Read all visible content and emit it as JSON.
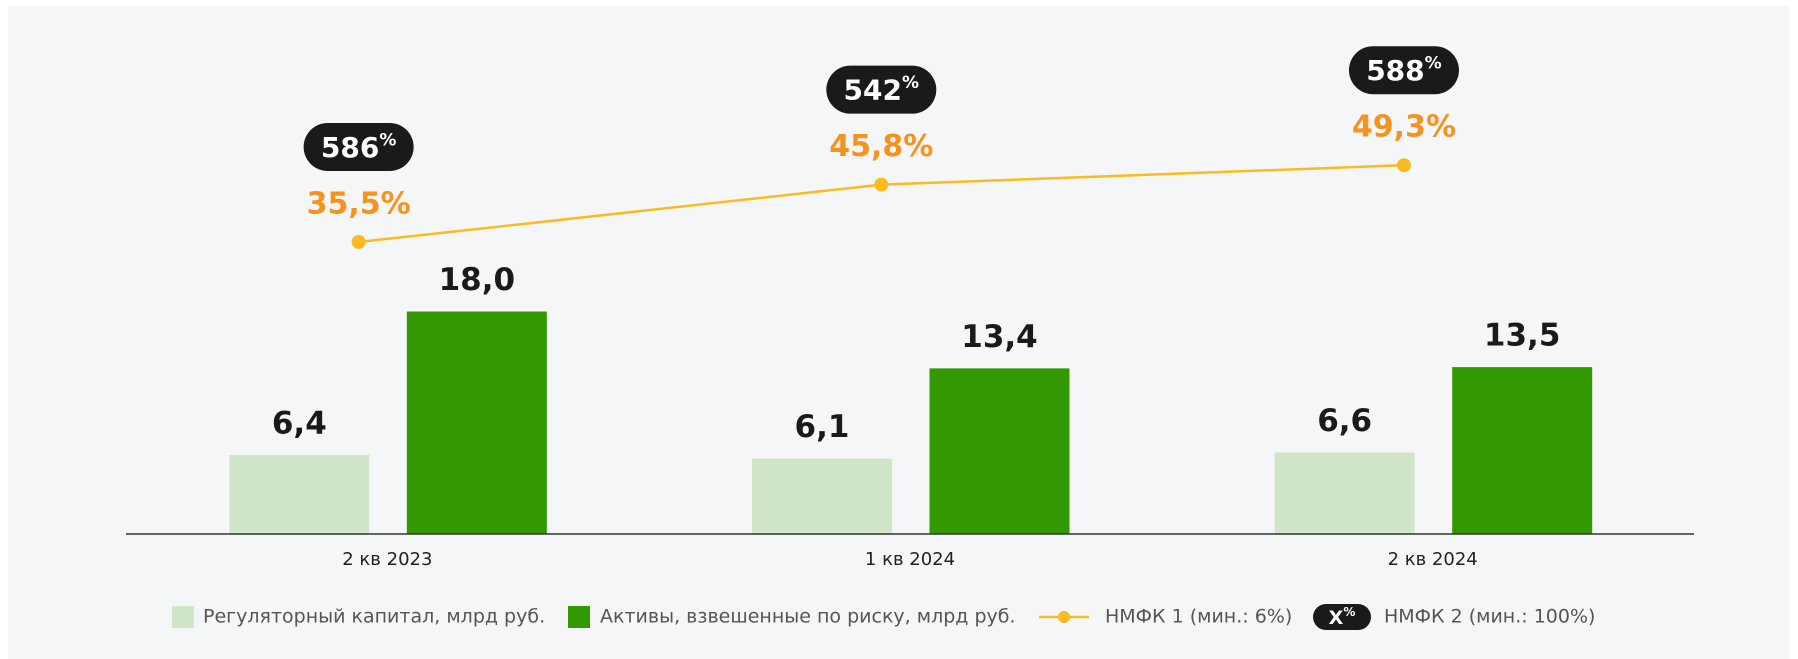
{
  "chart_data": {
    "type": "bar",
    "categories": [
      "2 кв 2023",
      "1 кв 2024",
      "2 кв 2024"
    ],
    "ylim": [
      0,
      36
    ],
    "y2lim": [
      -17,
      63
    ],
    "series": [
      {
        "name": "Регуляторный капитал, млрд руб.",
        "type": "bar",
        "color": "#d1e6c9",
        "values": [
          6.4,
          6.1,
          6.6
        ],
        "value_labels": [
          "6,4",
          "6,1",
          "6,6"
        ]
      },
      {
        "name": "Активы, взвешенные по риску, млрд руб.",
        "type": "bar",
        "color": "#339900",
        "values": [
          18.0,
          13.4,
          13.5
        ],
        "value_labels": [
          "18,0",
          "13,4",
          "13,5"
        ]
      },
      {
        "name": "НМФК 1 (мин.: 6%)",
        "type": "line",
        "axis": "y2",
        "color": "#f9bb1f",
        "label_color": "#f6921e",
        "values": [
          35.5,
          45.8,
          49.3
        ],
        "value_labels": [
          "35,5%",
          "45,8%",
          "49,3%"
        ]
      },
      {
        "name": "НМФК 2 (мин.: 100%)",
        "type": "badge",
        "color": "#1a1a1a",
        "legend_symbol": "X%",
        "values": [
          586,
          542,
          588
        ],
        "value_labels": [
          "586%",
          "542%",
          "588%"
        ]
      }
    ]
  }
}
